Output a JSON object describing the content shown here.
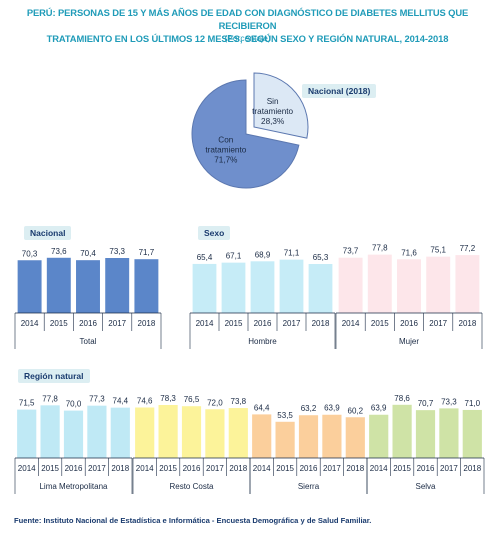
{
  "header": {
    "title_line1": "PERÚ: PERSONAS DE 15 Y MÁS AÑOS DE EDAD CON DIAGNÓSTICO DE DIABETES MELLITUS QUE RECIBIERON",
    "title_line2": "TRATAMIENTO EN LOS ÚLTIMOS 12 MESES, SEGÚN SEXO Y REGIÓN NATURAL, 2014-2018",
    "subtitle": "(Porcentaje)"
  },
  "labels": {
    "pie_pill": "Nacional (2018)",
    "nacional_pill": "Nacional",
    "sexo_pill": "Sexo",
    "region_pill": "Región natural"
  },
  "source": "Fuente: Instituto Nacional de Estadística e Informática - Encuesta Demográfica y de Salud Familiar.",
  "colors": {
    "title": "#1f9bb8",
    "pie_con": "#6f8fcc",
    "pie_sin": "#dce8f5",
    "total": "#5b86c9",
    "hombre": "#c6ecf7",
    "mujer": "#fde6ea",
    "lima": "#bfe9f5",
    "costa": "#fcf39a",
    "sierra": "#fbcf9c",
    "selva": "#cfe3a6"
  },
  "chart_data": [
    {
      "type": "pie",
      "slices": [
        {
          "label_line1": "Sin",
          "label_line2": "tratamiento",
          "value_label": "28,3%",
          "value": 28.3
        },
        {
          "label_line1": "Con",
          "label_line2": "tratamiento",
          "value_label": "71,7%",
          "value": 71.7
        }
      ]
    },
    {
      "type": "bar",
      "categories": [
        "2014",
        "2015",
        "2016",
        "2017",
        "2018"
      ],
      "groups": [
        {
          "name": "Total",
          "values": [
            70.3,
            73.6,
            70.4,
            73.3,
            71.7
          ],
          "labels": [
            "70,3",
            "73,6",
            "70,4",
            "73,3",
            "71,7"
          ]
        },
        {
          "name": "Hombre",
          "values": [
            65.4,
            67.1,
            68.9,
            71.1,
            65.3
          ],
          "labels": [
            "65,4",
            "67,1",
            "68,9",
            "71,1",
            "65,3"
          ]
        },
        {
          "name": "Mujer",
          "values": [
            73.7,
            77.8,
            71.6,
            75.1,
            77.2
          ],
          "labels": [
            "73,7",
            "77,8",
            "71,6",
            "75,1",
            "77,2"
          ]
        },
        {
          "name": "Lima Metropolitana",
          "values": [
            71.5,
            77.8,
            70.0,
            77.3,
            74.4
          ],
          "labels": [
            "71,5",
            "77,8",
            "70,0",
            "77,3",
            "74,4"
          ]
        },
        {
          "name": "Resto Costa",
          "values": [
            74.6,
            78.3,
            76.5,
            72.0,
            73.8
          ],
          "labels": [
            "74,6",
            "78,3",
            "76,5",
            "72,0",
            "73,8"
          ]
        },
        {
          "name": "Sierra",
          "values": [
            64.4,
            53.5,
            63.2,
            63.9,
            60.2
          ],
          "labels": [
            "64,4",
            "53,5",
            "63,2",
            "63,9",
            "60,2"
          ]
        },
        {
          "name": "Selva",
          "values": [
            63.9,
            78.6,
            70.7,
            73.3,
            71.0
          ],
          "labels": [
            "63,9",
            "78,6",
            "70,7",
            "73,3",
            "71,0"
          ]
        }
      ]
    }
  ]
}
